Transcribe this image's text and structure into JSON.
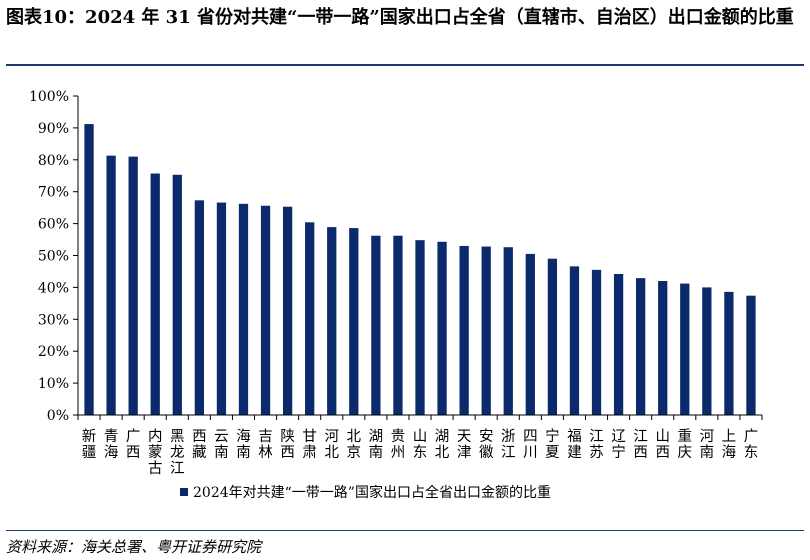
{
  "header": {
    "title": "图表10：2024 年 31 省份对共建“一带一路”国家出口占全省（直辖市、自治区）出口金额的比重"
  },
  "footer": {
    "source": "资料来源：海关总署、粤开证券研究院"
  },
  "colors": {
    "bar": "#0a2a6b",
    "axis": "#000000"
  },
  "chart_data": {
    "type": "bar",
    "title": "图表10：2024 年 31 省份对共建“一带一路”国家出口占全省（直辖市、自治区）出口金额的比重",
    "xlabel": "",
    "ylabel": "",
    "ylim": [
      0,
      100
    ],
    "yticks": [
      "0%",
      "10%",
      "20%",
      "30%",
      "40%",
      "50%",
      "60%",
      "70%",
      "80%",
      "90%",
      "100%"
    ],
    "grid": false,
    "legend_position": "bottom-left",
    "categories": [
      "新疆",
      "青海",
      "广西",
      "内蒙古",
      "黑龙江",
      "西藏",
      "云南",
      "海南",
      "吉林",
      "陕西",
      "甘肃",
      "河北",
      "北京",
      "湖南",
      "贵州",
      "山东",
      "湖北",
      "天津",
      "安徽",
      "浙江",
      "四川",
      "宁夏",
      "福建",
      "江苏",
      "辽宁",
      "江西",
      "山西",
      "重庆",
      "河南",
      "上海",
      "广东"
    ],
    "series": [
      {
        "name": "2024年对共建“一带一路”国家出口占全省出口金额的比重",
        "values": [
          91.2,
          81.3,
          81.0,
          75.7,
          75.3,
          67.3,
          66.6,
          66.2,
          65.6,
          65.3,
          60.4,
          58.9,
          58.6,
          56.2,
          56.2,
          54.8,
          54.3,
          53.0,
          52.8,
          52.6,
          50.5,
          49.0,
          46.6,
          45.5,
          44.2,
          42.9,
          42.0,
          41.2,
          40.0,
          38.6,
          37.4
        ]
      }
    ]
  }
}
